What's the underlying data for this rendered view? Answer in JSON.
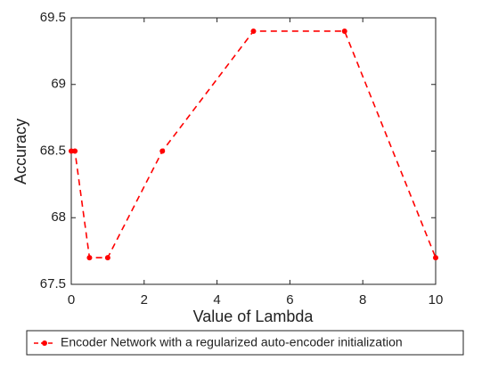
{
  "chart_data": {
    "type": "line",
    "x_label": "Value of Lambda",
    "y_label": "Accuracy",
    "x": [
      0,
      0.1,
      0.5,
      1,
      2.5,
      5,
      7.5,
      10
    ],
    "series": [
      {
        "name": "Encoder Network with a regularized auto-encoder initialization",
        "color": "#ff0000",
        "values": [
          68.5,
          68.5,
          67.7,
          67.7,
          68.5,
          69.4,
          69.4,
          67.7
        ]
      }
    ],
    "xlim": [
      0,
      10
    ],
    "xticks": [
      0,
      2,
      4,
      6,
      8,
      10
    ],
    "ylim": [
      67.5,
      69.5
    ],
    "yticks": [
      67.5,
      68,
      68.5,
      69,
      69.5
    ],
    "line_style": "dashed",
    "legend": "bottom"
  }
}
